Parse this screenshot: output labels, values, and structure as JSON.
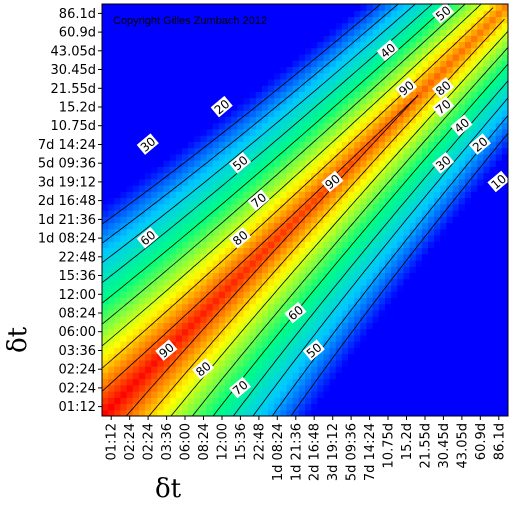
{
  "chart_data": {
    "type": "heatmap",
    "copyright": "Copyright Gilles Zumbach 2012",
    "xlabel": "δt",
    "ylabel": "δt",
    "tick_labels": [
      "01:12",
      "02:24",
      "02:24",
      "03:36",
      "06:00",
      "08:24",
      "12:00",
      "15:36",
      "22:48",
      "1d 08:24",
      "1d 21:36",
      "2d 16:48",
      "3d 19:12",
      "5d 09:36",
      "7d 14:24",
      "10.75d",
      "15.2d",
      "21.55d",
      "30.45d",
      "43.05d",
      "60.9d",
      "86.1d"
    ],
    "color_scale": [
      "#0000ff",
      "#00c8ff",
      "#00ff80",
      "#ffff00",
      "#ff0000"
    ],
    "contour_labels": [
      {
        "text": "90",
        "x": 3,
        "y": 3
      },
      {
        "text": "80",
        "x": 5,
        "y": 2
      },
      {
        "text": "70",
        "x": 7,
        "y": 1
      },
      {
        "text": "60",
        "x": 10,
        "y": 5
      },
      {
        "text": "50",
        "x": 11,
        "y": 3
      },
      {
        "text": "60",
        "x": 2,
        "y": 9
      },
      {
        "text": "70",
        "x": 8,
        "y": 11
      },
      {
        "text": "80",
        "x": 7,
        "y": 9
      },
      {
        "text": "90",
        "x": 12,
        "y": 12
      },
      {
        "text": "30",
        "x": 2,
        "y": 14
      },
      {
        "text": "20",
        "x": 6,
        "y": 16
      },
      {
        "text": "50",
        "x": 7,
        "y": 13
      },
      {
        "text": "40",
        "x": 15,
        "y": 19
      },
      {
        "text": "50",
        "x": 18,
        "y": 21
      },
      {
        "text": "90",
        "x": 16,
        "y": 17
      },
      {
        "text": "80",
        "x": 18,
        "y": 17
      },
      {
        "text": "70",
        "x": 18,
        "y": 16
      },
      {
        "text": "40",
        "x": 19,
        "y": 15
      },
      {
        "text": "30",
        "x": 18,
        "y": 13
      },
      {
        "text": "20",
        "x": 20,
        "y": 14
      },
      {
        "text": "10",
        "x": 21,
        "y": 12
      }
    ]
  }
}
